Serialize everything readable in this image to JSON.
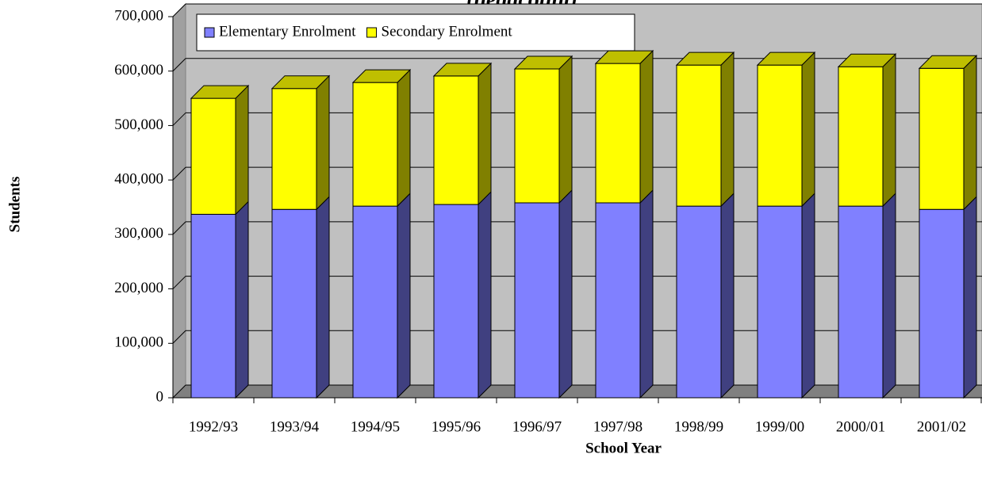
{
  "chart_data": {
    "type": "stacked_bar_3d",
    "title": "(headcount)",
    "x_label": "School Year",
    "y_label": "Students",
    "categories": [
      "1992/93",
      "1993/94",
      "1994/95",
      "1995/96",
      "1996/97",
      "1997/98",
      "1998/99",
      "1999/00",
      "2000/01",
      "2001/02"
    ],
    "series": [
      {
        "name": "Elementary Enrolment",
        "color": "#8080ff",
        "values": [
          337000,
          346000,
          352000,
          355000,
          358000,
          358000,
          352000,
          352000,
          352000,
          346000
        ]
      },
      {
        "name": "Secondary Enrolment",
        "color": "#ffff00",
        "values": [
          213000,
          222000,
          227000,
          236000,
          246000,
          256000,
          259000,
          259000,
          256000,
          259000
        ]
      }
    ],
    "ylim": [
      0,
      700000
    ],
    "yticks": [
      0,
      {
        "value": 100000,
        "label": "100,000"
      },
      {
        "value": 200000,
        "label": "200,000"
      },
      {
        "value": 300000,
        "label": "300,000"
      },
      {
        "value": 400000,
        "label": "400,000"
      },
      {
        "value": 500000,
        "label": "500,000"
      },
      {
        "value": 600000,
        "label": "600,000"
      },
      {
        "value": 700000,
        "label": "700,000"
      }
    ],
    "grid": true,
    "legend": "top-left"
  }
}
